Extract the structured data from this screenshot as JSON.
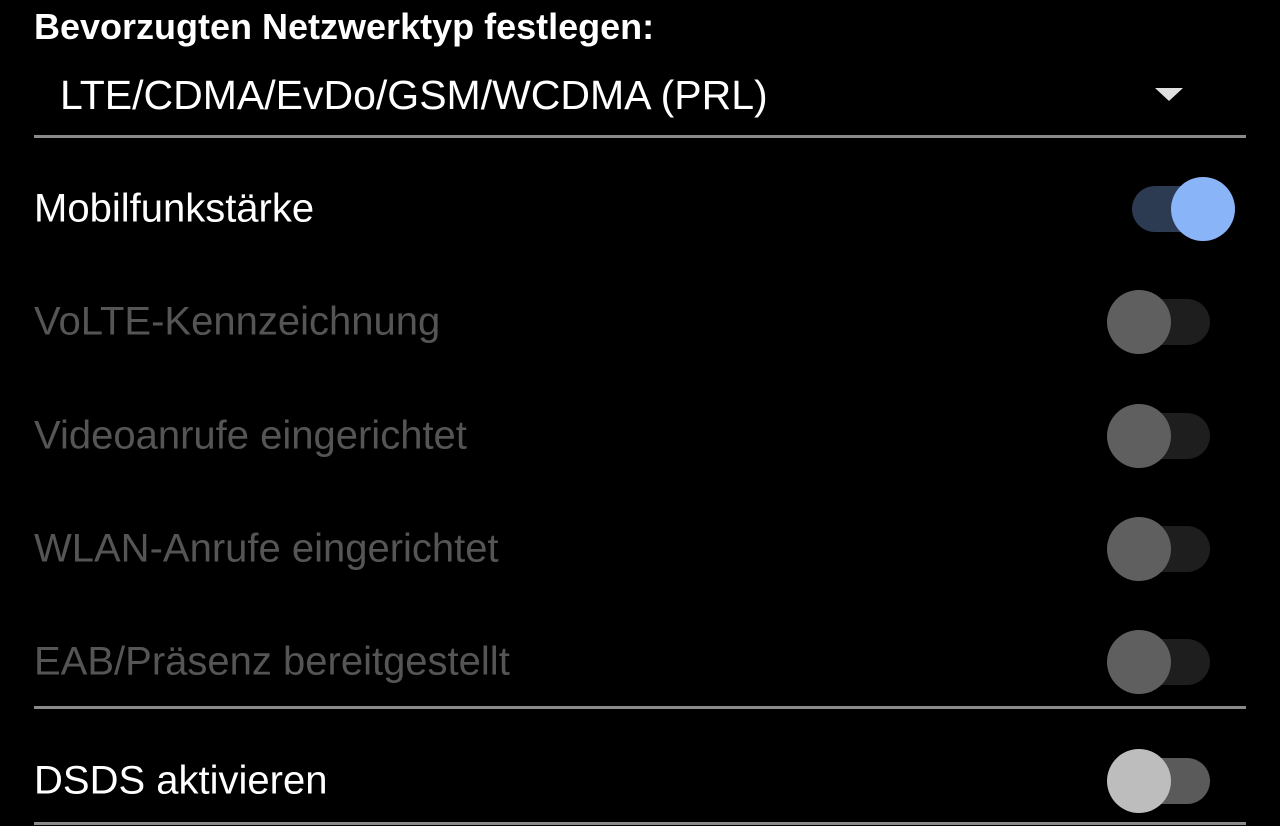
{
  "title": "Bevorzugten Netzwerktyp festlegen:",
  "network_type": {
    "selected": "LTE/CDMA/EvDo/GSM/WCDMA (PRL)",
    "icon": "dropdown-arrow-icon"
  },
  "settings": [
    {
      "label": "Mobilfunkstärke",
      "checked": true,
      "enabled": true
    },
    {
      "label": "VoLTE-Kennzeichnung",
      "checked": false,
      "enabled": false
    },
    {
      "label": "Videoanrufe eingerichtet",
      "checked": false,
      "enabled": false
    },
    {
      "label": "WLAN-Anrufe eingerichtet",
      "checked": false,
      "enabled": false
    },
    {
      "label": "EAB/Präsenz bereitgestellt",
      "checked": false,
      "enabled": false
    },
    {
      "label": "DSDS aktivieren",
      "checked": false,
      "enabled": true
    }
  ],
  "colors": {
    "accent": "#8ab4f8",
    "accent_track": "#2c3a52",
    "disabled_text": "#555555",
    "divider": "#8a8a8a"
  }
}
